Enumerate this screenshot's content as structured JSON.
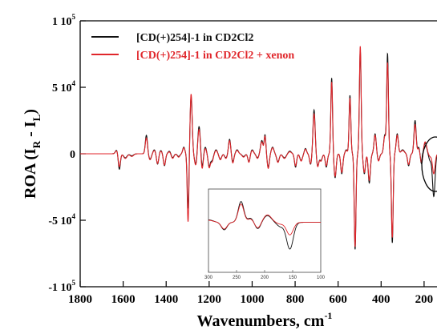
{
  "chart_data": {
    "type": "line",
    "xlabel": "Wavenumbers, cm",
    "xlabel_sup": "-1",
    "ylabel": "ROA (I",
    "ylabel_sub_r": "R",
    "ylabel_mid": " - I",
    "ylabel_sub_l": "L",
    "ylabel_close": ")",
    "xlim": [
      1800,
      140
    ],
    "ylim": [
      -100000,
      100000
    ],
    "x_reversed": true,
    "grid": false,
    "legend_position": "top-left",
    "x_ticks": [
      {
        "value": 1800,
        "label": "1800"
      },
      {
        "value": 1600,
        "label": "1600"
      },
      {
        "value": 1400,
        "label": "1400"
      },
      {
        "value": 1200,
        "label": "1200"
      },
      {
        "value": 1000,
        "label": "1000"
      },
      {
        "value": 800,
        "label": "800"
      },
      {
        "value": 600,
        "label": "600"
      },
      {
        "value": 400,
        "label": "400"
      },
      {
        "value": 200,
        "label": "200"
      }
    ],
    "y_ticks": [
      {
        "value": 100000,
        "mant": "1 10",
        "exp": "5"
      },
      {
        "value": 50000,
        "mant": "5 10",
        "exp": "4"
      },
      {
        "value": 0,
        "mant": "0",
        "exp": ""
      },
      {
        "value": -50000,
        "mant": "-5 10",
        "exp": "4"
      },
      {
        "value": -100000,
        "mant": "-1 10",
        "exp": "5"
      }
    ],
    "series": [
      {
        "name": "[CD(+)254]-1 in CD2Cl2",
        "color": "#111111",
        "peaks": [
          [
            1630,
            3000,
            6
          ],
          [
            1618,
            -12000,
            5
          ],
          [
            1590,
            -3000,
            8
          ],
          [
            1560,
            -1500,
            8
          ],
          [
            1492,
            14000,
            5
          ],
          [
            1475,
            -4000,
            6
          ],
          [
            1455,
            3000,
            6
          ],
          [
            1440,
            -8000,
            5
          ],
          [
            1425,
            2500,
            6
          ],
          [
            1408,
            -9000,
            5
          ],
          [
            1385,
            2000,
            6
          ],
          [
            1370,
            -3000,
            6
          ],
          [
            1342,
            -2000,
            6
          ],
          [
            1318,
            5000,
            5
          ],
          [
            1298,
            -42000,
            4
          ],
          [
            1284,
            43000,
            5
          ],
          [
            1262,
            -8000,
            6
          ],
          [
            1247,
            21000,
            6
          ],
          [
            1233,
            -10000,
            5
          ],
          [
            1218,
            5000,
            5
          ],
          [
            1200,
            -9000,
            5
          ],
          [
            1187,
            -5000,
            6
          ],
          [
            1168,
            3000,
            6
          ],
          [
            1148,
            -4000,
            6
          ],
          [
            1122,
            -3000,
            6
          ],
          [
            1105,
            11000,
            5
          ],
          [
            1090,
            -6000,
            5
          ],
          [
            1070,
            3000,
            6
          ],
          [
            1040,
            -2000,
            7
          ],
          [
            1015,
            -6000,
            5
          ],
          [
            1000,
            3000,
            6
          ],
          [
            975,
            -3000,
            6
          ],
          [
            955,
            10000,
            6
          ],
          [
            940,
            14000,
            4
          ],
          [
            925,
            -10000,
            5
          ],
          [
            905,
            5000,
            6
          ],
          [
            880,
            -6000,
            6
          ],
          [
            850,
            -3000,
            8
          ],
          [
            825,
            2000,
            7
          ],
          [
            798,
            -10000,
            5
          ],
          [
            772,
            -5000,
            6
          ],
          [
            752,
            4000,
            5
          ],
          [
            728,
            -8000,
            5
          ],
          [
            712,
            33000,
            5
          ],
          [
            695,
            -9000,
            5
          ],
          [
            680,
            -5000,
            6
          ],
          [
            655,
            -10000,
            5
          ],
          [
            630,
            57000,
            4
          ],
          [
            614,
            -18000,
            5
          ],
          [
            583,
            -15000,
            5
          ],
          [
            562,
            3000,
            5
          ],
          [
            545,
            44000,
            4
          ],
          [
            521,
            -72000,
            4
          ],
          [
            497,
            78000,
            4
          ],
          [
            478,
            -15000,
            5
          ],
          [
            455,
            -22000,
            5
          ],
          [
            428,
            15000,
            5
          ],
          [
            412,
            -5000,
            5
          ],
          [
            383,
            14000,
            5
          ],
          [
            370,
            75000,
            4
          ],
          [
            348,
            -67000,
            4
          ],
          [
            325,
            15000,
            5
          ],
          [
            300,
            3000,
            8
          ],
          [
            272,
            -9000,
            5
          ],
          [
            242,
            25000,
            5
          ],
          [
            225,
            5000,
            5
          ],
          [
            212,
            -8000,
            5
          ],
          [
            195,
            8000,
            7
          ],
          [
            172,
            -5000,
            6
          ],
          [
            155,
            -32000,
            6
          ]
        ]
      },
      {
        "name": "[CD(+)254]-1 in CD2Cl2 + xenon",
        "color": "#e0262b",
        "peaks": [
          [
            1630,
            2500,
            6
          ],
          [
            1618,
            -10000,
            5
          ],
          [
            1590,
            -3500,
            8
          ],
          [
            1560,
            -2000,
            8
          ],
          [
            1492,
            12000,
            5
          ],
          [
            1475,
            -4500,
            6
          ],
          [
            1455,
            2500,
            6
          ],
          [
            1440,
            -7500,
            5
          ],
          [
            1425,
            2000,
            6
          ],
          [
            1408,
            -8500,
            5
          ],
          [
            1385,
            1500,
            6
          ],
          [
            1370,
            -3500,
            6
          ],
          [
            1342,
            -2500,
            6
          ],
          [
            1318,
            4500,
            5
          ],
          [
            1298,
            -52000,
            4
          ],
          [
            1284,
            45000,
            5
          ],
          [
            1262,
            -9000,
            6
          ],
          [
            1247,
            19000,
            6
          ],
          [
            1233,
            -12000,
            5
          ],
          [
            1218,
            4000,
            5
          ],
          [
            1200,
            -10000,
            5
          ],
          [
            1187,
            -6000,
            6
          ],
          [
            1168,
            2500,
            6
          ],
          [
            1148,
            -4500,
            6
          ],
          [
            1122,
            -3500,
            6
          ],
          [
            1105,
            10000,
            5
          ],
          [
            1090,
            -7000,
            5
          ],
          [
            1070,
            2500,
            6
          ],
          [
            1040,
            -2500,
            7
          ],
          [
            1015,
            -6500,
            5
          ],
          [
            1000,
            2500,
            6
          ],
          [
            975,
            -3500,
            6
          ],
          [
            955,
            9000,
            6
          ],
          [
            940,
            13000,
            4
          ],
          [
            925,
            -11000,
            5
          ],
          [
            905,
            4500,
            6
          ],
          [
            880,
            -6500,
            6
          ],
          [
            850,
            -3500,
            8
          ],
          [
            825,
            1500,
            7
          ],
          [
            798,
            -9000,
            5
          ],
          [
            772,
            -5500,
            6
          ],
          [
            752,
            3500,
            5
          ],
          [
            728,
            -7500,
            5
          ],
          [
            712,
            30000,
            5
          ],
          [
            695,
            -9500,
            5
          ],
          [
            680,
            -5500,
            6
          ],
          [
            655,
            -9000,
            5
          ],
          [
            630,
            54000,
            4
          ],
          [
            614,
            -17000,
            5
          ],
          [
            583,
            -14000,
            5
          ],
          [
            562,
            2500,
            5
          ],
          [
            545,
            42000,
            4
          ],
          [
            521,
            -70000,
            4
          ],
          [
            497,
            81000,
            4
          ],
          [
            478,
            -14000,
            5
          ],
          [
            455,
            -20000,
            5
          ],
          [
            428,
            14000,
            5
          ],
          [
            412,
            -5500,
            5
          ],
          [
            383,
            13000,
            5
          ],
          [
            370,
            68000,
            4
          ],
          [
            348,
            -63000,
            4
          ],
          [
            325,
            14000,
            5
          ],
          [
            300,
            2500,
            8
          ],
          [
            272,
            -8000,
            5
          ],
          [
            242,
            22000,
            5
          ],
          [
            225,
            4000,
            5
          ],
          [
            212,
            -7000,
            5
          ],
          [
            195,
            9000,
            7
          ],
          [
            172,
            -2000,
            6
          ],
          [
            155,
            -15000,
            6
          ]
        ]
      }
    ],
    "inset": {
      "x_ticks": [
        {
          "value": 300,
          "label": "300"
        },
        {
          "value": 250,
          "label": "250"
        },
        {
          "value": 200,
          "label": "200"
        },
        {
          "value": 150,
          "label": "150"
        },
        {
          "value": 100,
          "label": "100"
        }
      ],
      "xlim": [
        300,
        100
      ],
      "ylim": [
        -60000,
        40000
      ]
    }
  }
}
